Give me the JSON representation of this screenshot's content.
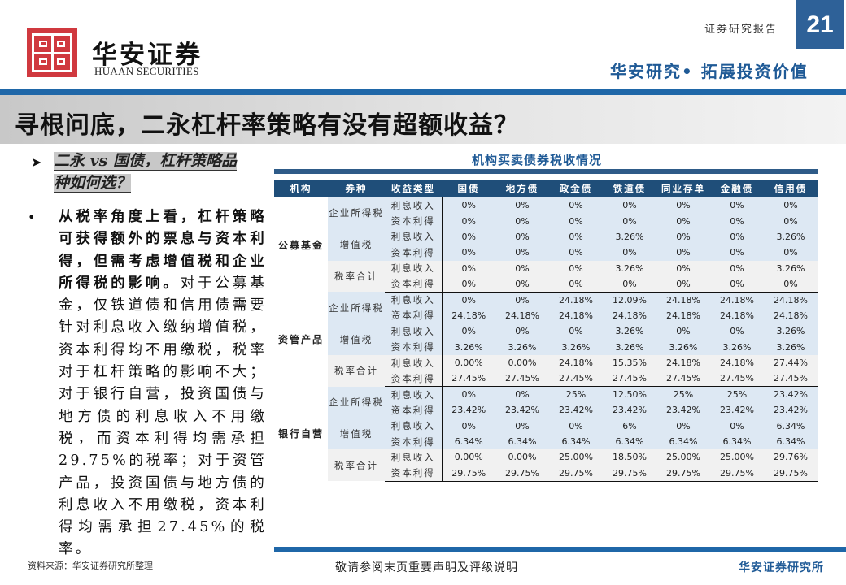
{
  "header": {
    "brand_cn": "华安证券",
    "brand_en": "HUAAN SECURITIES",
    "report_label": "证券研究报告",
    "page_number": "21",
    "slogan": "华安研究• 拓展投资价值"
  },
  "title": "寻根问底，二永杠杆率策略有没有超额收益？",
  "left": {
    "subhead_line1": "二永 vs 国债，杠杆策略品",
    "subhead_line2": "种如何选？",
    "para_bold": "从税率角度上看，杠杆策略可获得额外的票息与资本利得，但需考虑增值税和企业所得税的影响。",
    "para_rest": "对于公募基金，仅铁道债和信用债需要针对利息收入缴纳增值税，资本利得均不用缴税，税率对于杠杆策略的影响不大；对于银行自营，投资国债与地方债的利息收入不用缴税，而资本利得均需承担29.75%的税率；对于资管产品，投资国债与地方债的利息收入不用缴税，资本利得均需承担27.45%的税率。"
  },
  "table": {
    "title": "机构买卖债券税收情况",
    "headers": [
      "机构",
      "券种",
      "收益类型",
      "国债",
      "地方债",
      "政金债",
      "铁道债",
      "同业存单",
      "金融债",
      "信用债"
    ],
    "groups": [
      {
        "institution": "公募基金",
        "rows": [
          {
            "kind": "企业所得税",
            "type": "利息收入",
            "values": [
              "0%",
              "0%",
              "0%",
              "0%",
              "0%",
              "0%",
              "0%"
            ]
          },
          {
            "kind": "",
            "type": "资本利得",
            "values": [
              "0%",
              "0%",
              "0%",
              "0%",
              "0%",
              "0%",
              "0%"
            ]
          },
          {
            "kind": "增值税",
            "type": "利息收入",
            "values": [
              "0%",
              "0%",
              "0%",
              "3.26%",
              "0%",
              "0%",
              "3.26%"
            ]
          },
          {
            "kind": "",
            "type": "资本利得",
            "values": [
              "0%",
              "0%",
              "0%",
              "0%",
              "0%",
              "0%",
              "0%"
            ]
          },
          {
            "kind": "税率合计",
            "type": "利息收入",
            "values": [
              "0%",
              "0%",
              "0%",
              "3.26%",
              "0%",
              "0%",
              "3.26%"
            ]
          },
          {
            "kind": "",
            "type": "资本利得",
            "values": [
              "0%",
              "0%",
              "0%",
              "0%",
              "0%",
              "0%",
              "0%"
            ]
          }
        ]
      },
      {
        "institution": "资管产品",
        "rows": [
          {
            "kind": "企业所得税",
            "type": "利息收入",
            "values": [
              "0%",
              "0%",
              "24.18%",
              "12.09%",
              "24.18%",
              "24.18%",
              "24.18%"
            ]
          },
          {
            "kind": "",
            "type": "资本利得",
            "values": [
              "24.18%",
              "24.18%",
              "24.18%",
              "24.18%",
              "24.18%",
              "24.18%",
              "24.18%"
            ]
          },
          {
            "kind": "增值税",
            "type": "利息收入",
            "values": [
              "0%",
              "0%",
              "0%",
              "3.26%",
              "0%",
              "0%",
              "3.26%"
            ]
          },
          {
            "kind": "",
            "type": "资本利得",
            "values": [
              "3.26%",
              "3.26%",
              "3.26%",
              "3.26%",
              "3.26%",
              "3.26%",
              "3.26%"
            ]
          },
          {
            "kind": "税率合计",
            "type": "利息收入",
            "values": [
              "0.00%",
              "0.00%",
              "24.18%",
              "15.35%",
              "24.18%",
              "24.18%",
              "27.44%"
            ]
          },
          {
            "kind": "",
            "type": "资本利得",
            "values": [
              "27.45%",
              "27.45%",
              "27.45%",
              "27.45%",
              "27.45%",
              "27.45%",
              "27.45%"
            ]
          }
        ]
      },
      {
        "institution": "银行自营",
        "rows": [
          {
            "kind": "企业所得税",
            "type": "利息收入",
            "values": [
              "0%",
              "0%",
              "25%",
              "12.50%",
              "25%",
              "25%",
              "23.42%"
            ]
          },
          {
            "kind": "",
            "type": "资本利得",
            "values": [
              "23.42%",
              "23.42%",
              "23.42%",
              "23.42%",
              "23.42%",
              "23.42%",
              "23.42%"
            ]
          },
          {
            "kind": "增值税",
            "type": "利息收入",
            "values": [
              "0%",
              "0%",
              "0%",
              "6%",
              "0%",
              "0%",
              "6.34%"
            ]
          },
          {
            "kind": "",
            "type": "资本利得",
            "values": [
              "6.34%",
              "6.34%",
              "6.34%",
              "6.34%",
              "6.34%",
              "6.34%",
              "6.34%"
            ]
          },
          {
            "kind": "税率合计",
            "type": "利息收入",
            "values": [
              "0.00%",
              "0.00%",
              "25.00%",
              "18.50%",
              "25.00%",
              "25.00%",
              "29.76%"
            ]
          },
          {
            "kind": "",
            "type": "资本利得",
            "values": [
              "29.75%",
              "29.75%",
              "29.75%",
              "29.75%",
              "29.75%",
              "29.75%",
              "29.75%"
            ]
          }
        ]
      }
    ]
  },
  "footer": {
    "source": "资料来源：华安证券研究所整理",
    "disclaimer": "敬请参阅末页重要声明及评级说明",
    "brand": "华安证券研究所"
  },
  "colors": {
    "brand_red": "#d0393f",
    "brand_blue": "#1f67a8",
    "table_header": "#1f4e79",
    "row_blue": "#dde8f3",
    "row_grey": "#f1f1f1"
  }
}
